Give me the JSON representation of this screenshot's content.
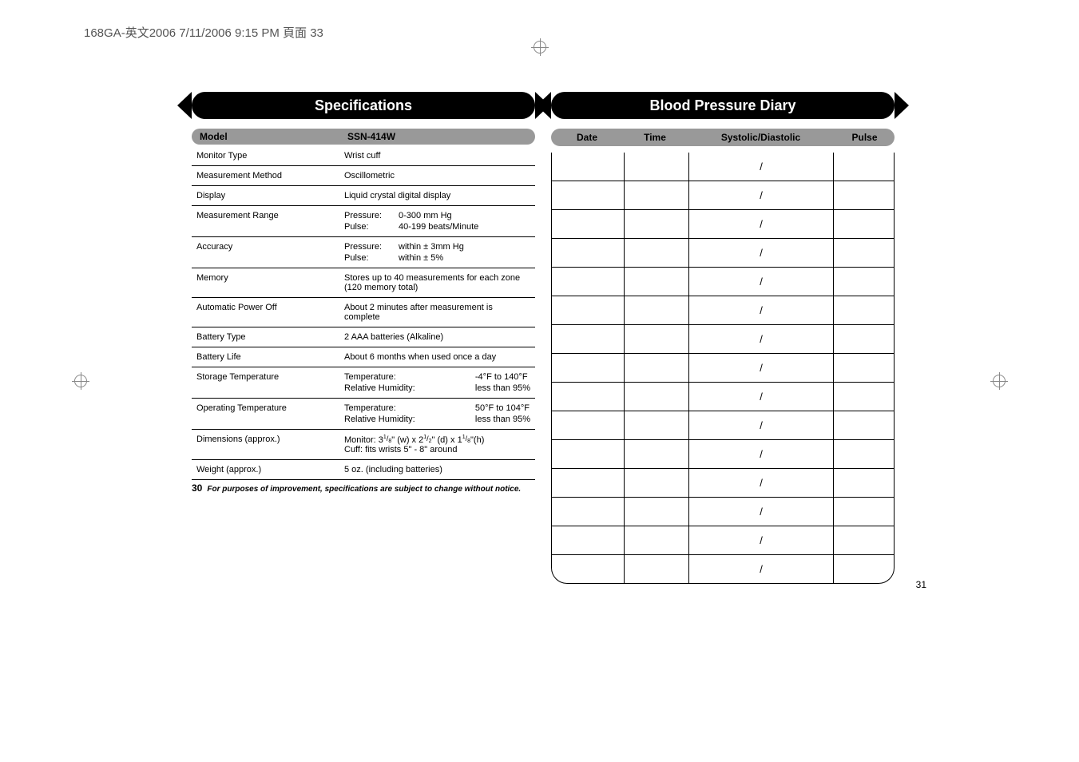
{
  "topbar": "168GA-英文2006  7/11/2006  9:15 PM  頁面 33",
  "left": {
    "title": "Specifications",
    "pageNum": "30",
    "footnote": "For purposes of improvement, specifications are subject to change without notice.",
    "headerL": "Model",
    "headerR": "SSN-414W",
    "rows": [
      {
        "label": "Monitor Type",
        "type": "text",
        "value": "Wrist cuff"
      },
      {
        "label": "Measurement Method",
        "type": "text",
        "value": "Oscillometric"
      },
      {
        "label": "Display",
        "type": "text",
        "value": "Liquid crystal digital display"
      },
      {
        "label": "Measurement Range",
        "type": "grid",
        "cells": [
          "Pressure:",
          "0-300 mm Hg",
          "Pulse:",
          "40-199 beats/Minute"
        ]
      },
      {
        "label": "Accuracy",
        "type": "grid",
        "cells": [
          "Pressure:",
          "within ± 3mm Hg",
          "Pulse:",
          "within ± 5%"
        ]
      },
      {
        "label": "Memory",
        "type": "text",
        "value": "Stores up to 40 measurements for each zone (120 memory total)"
      },
      {
        "label": "Automatic Power Off",
        "type": "text",
        "value": "About 2 minutes after measurement is complete"
      },
      {
        "label": "Battery Type",
        "type": "text",
        "value": "2 AAA batteries (Alkaline)"
      },
      {
        "label": "Battery Life",
        "type": "text",
        "value": "About 6 months when used once a day"
      },
      {
        "label": "Storage Temperature",
        "type": "grid2",
        "cells": [
          "Temperature:",
          "-4°F to 140°F",
          "Relative Humidity:",
          "less than 95%"
        ]
      },
      {
        "label": "Operating Temperature",
        "type": "grid2",
        "cells": [
          "Temperature:",
          "50°F to 104°F",
          "Relative Humidity:",
          "less than 95%"
        ]
      },
      {
        "label": "Dimensions (approx.)",
        "type": "dims"
      },
      {
        "label": "Weight (approx.)",
        "type": "text",
        "value": "5 oz. (including batteries)"
      }
    ],
    "dims": {
      "line1_pre": "Monitor: 3",
      "f1n": "1",
      "f1d": "8",
      "mid1": "\" (w) x 2",
      "f2n": "1",
      "f2d": "2",
      "mid2": "\" (d) x 1",
      "f3n": "1",
      "f3d": "8",
      "suf": "\"(h)",
      "line2": "Cuff: fits wrists 5\" - 8\" around"
    }
  },
  "right": {
    "title": "Blood Pressure Diary",
    "pageNum": "31",
    "headers": [
      "Date",
      "Time",
      "Systolic/Diastolic",
      "Pulse"
    ],
    "rowCount": 15,
    "separator": "/"
  }
}
